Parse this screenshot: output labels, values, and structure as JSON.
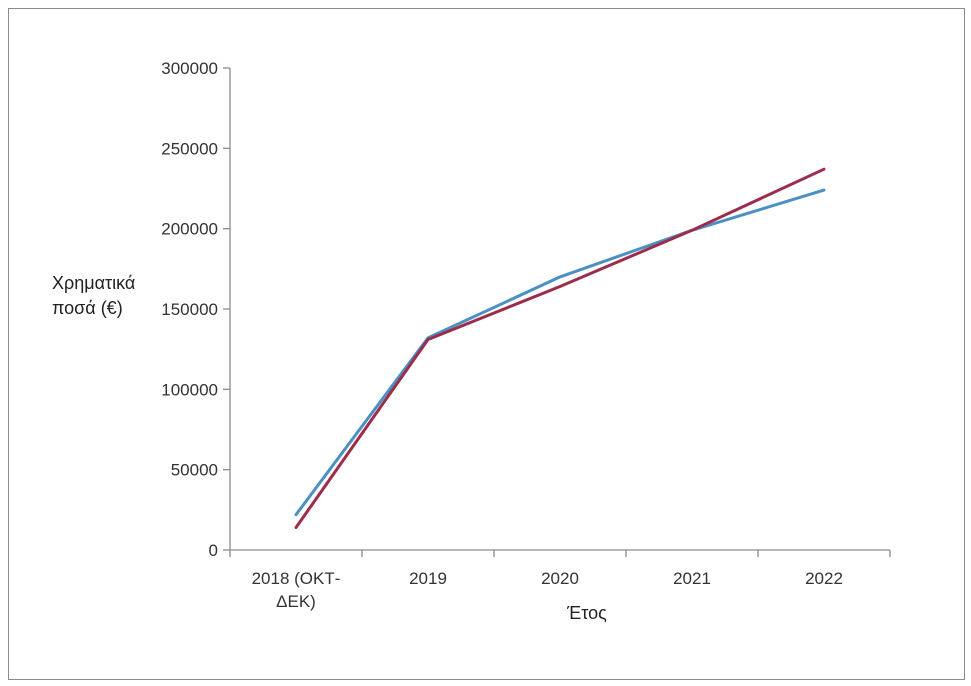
{
  "chart_data": {
    "type": "line",
    "title": "",
    "xlabel": "Έτος",
    "ylabel_lines": [
      "Χρηματικά",
      "ποσά (€)"
    ],
    "categories": [
      [
        "2018 (ΟΚΤ-",
        "ΔΕΚ)"
      ],
      [
        "2019"
      ],
      [
        "2020"
      ],
      [
        "2021"
      ],
      [
        "2022"
      ]
    ],
    "y_ticks": [
      0,
      50000,
      100000,
      150000,
      200000,
      250000,
      300000
    ],
    "ylim": [
      0,
      300000
    ],
    "grid": false,
    "legend": "none",
    "series": [
      {
        "color": "#4a90c4",
        "values": [
          22000,
          132000,
          170000,
          199000,
          224000
        ]
      },
      {
        "color": "#9b2d4b",
        "values": [
          14000,
          131000,
          164000,
          199000,
          237000
        ]
      }
    ]
  }
}
